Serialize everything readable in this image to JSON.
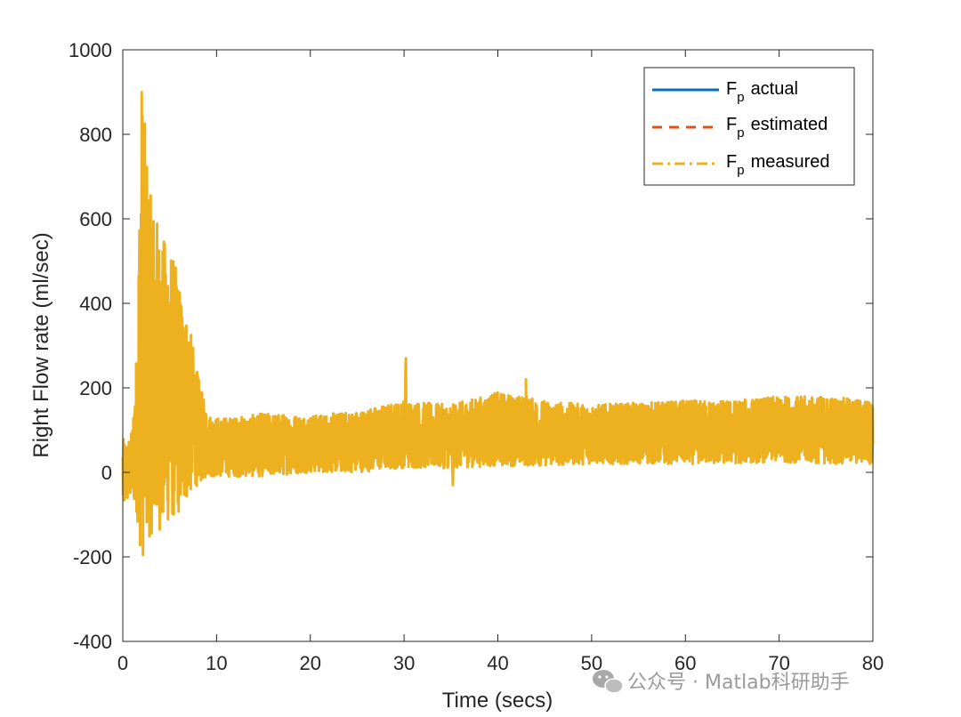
{
  "chart_data": {
    "type": "line",
    "title": "",
    "xlabel": "Time (secs)",
    "ylabel": "Right Flow rate (ml/sec)",
    "xlim": [
      0,
      80
    ],
    "ylim": [
      -400,
      1000
    ],
    "xticks": [
      0,
      10,
      20,
      30,
      40,
      50,
      60,
      70,
      80
    ],
    "yticks": [
      -400,
      -200,
      0,
      200,
      400,
      600,
      800,
      1000
    ],
    "grid": false,
    "legend_position": "top-right",
    "series": [
      {
        "name": "actual",
        "legend_main": "F",
        "legend_sub": "p",
        "color": "#0072BD",
        "style": "solid"
      },
      {
        "name": "estimated",
        "legend_main": "F",
        "legend_sub": "p",
        "color": "#D95319",
        "style": "dashed"
      },
      {
        "name": "measured",
        "legend_main": "F",
        "legend_sub": "p",
        "color": "#EDB120",
        "style": "dashdot",
        "envelope": {
          "t": [
            0,
            0.5,
            1,
            1.5,
            2,
            2.5,
            3,
            3.5,
            4,
            4.5,
            5,
            5.5,
            6,
            6.5,
            7,
            7.5,
            8,
            9,
            10,
            12,
            15,
            20,
            25,
            30,
            35,
            40,
            45,
            50,
            55,
            60,
            65,
            70,
            75,
            80
          ],
          "upper": [
            80,
            70,
            100,
            300,
            940,
            780,
            650,
            620,
            560,
            550,
            540,
            500,
            450,
            390,
            360,
            300,
            230,
            140,
            130,
            130,
            140,
            135,
            145,
            170,
            160,
            190,
            170,
            160,
            165,
            170,
            170,
            180,
            180,
            170
          ],
          "lower": [
            -90,
            -70,
            -60,
            -100,
            -220,
            -170,
            -150,
            -130,
            -140,
            -130,
            -120,
            -110,
            -100,
            -80,
            -60,
            -40,
            -30,
            -10,
            -10,
            -10,
            -10,
            0,
            0,
            10,
            10,
            15,
            15,
            20,
            20,
            20,
            20,
            25,
            20,
            20
          ],
          "spikes": [
            {
              "t": 30.2,
              "value": 270
            },
            {
              "t": 43,
              "value": 220
            },
            {
              "t": 35.2,
              "value": -30
            }
          ]
        }
      }
    ]
  },
  "watermark": {
    "icon": "wechat-icon",
    "text": "公众号 · Matlab科研助手"
  }
}
